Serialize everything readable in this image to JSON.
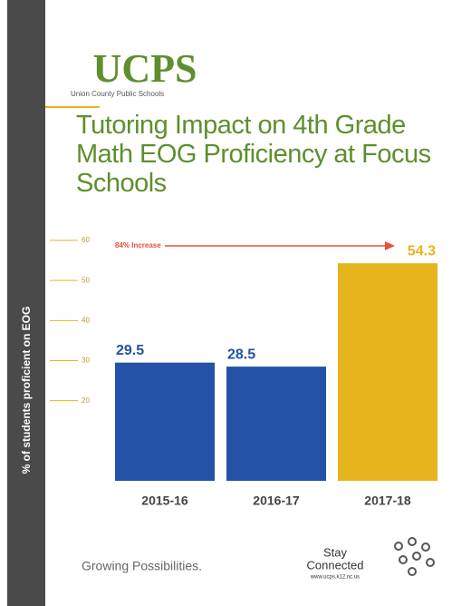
{
  "logo": {
    "text": "UCPS",
    "subtitle": "Union County Public Schools"
  },
  "chart_data": {
    "type": "bar",
    "title": "Tutoring Impact on 4th Grade Math EOG Proficiency at Focus Schools",
    "y_label": "% of students proficient on EOG",
    "annotation": "84% Increase",
    "categories": [
      "2015-16",
      "2016-17",
      "2017-18"
    ],
    "values": [
      29.5,
      28.5,
      54.3
    ],
    "colors": [
      "#2352a6",
      "#2352a6",
      "#e6b41c"
    ],
    "ylim": [
      0,
      60
    ],
    "yticks": [
      20,
      30,
      40,
      50,
      60
    ],
    "grid": false
  },
  "footer": {
    "tagline": "Growing Possibilities.",
    "stay": "Stay",
    "connected": "Connected",
    "url": "www.ucps.k12.nc.us"
  }
}
